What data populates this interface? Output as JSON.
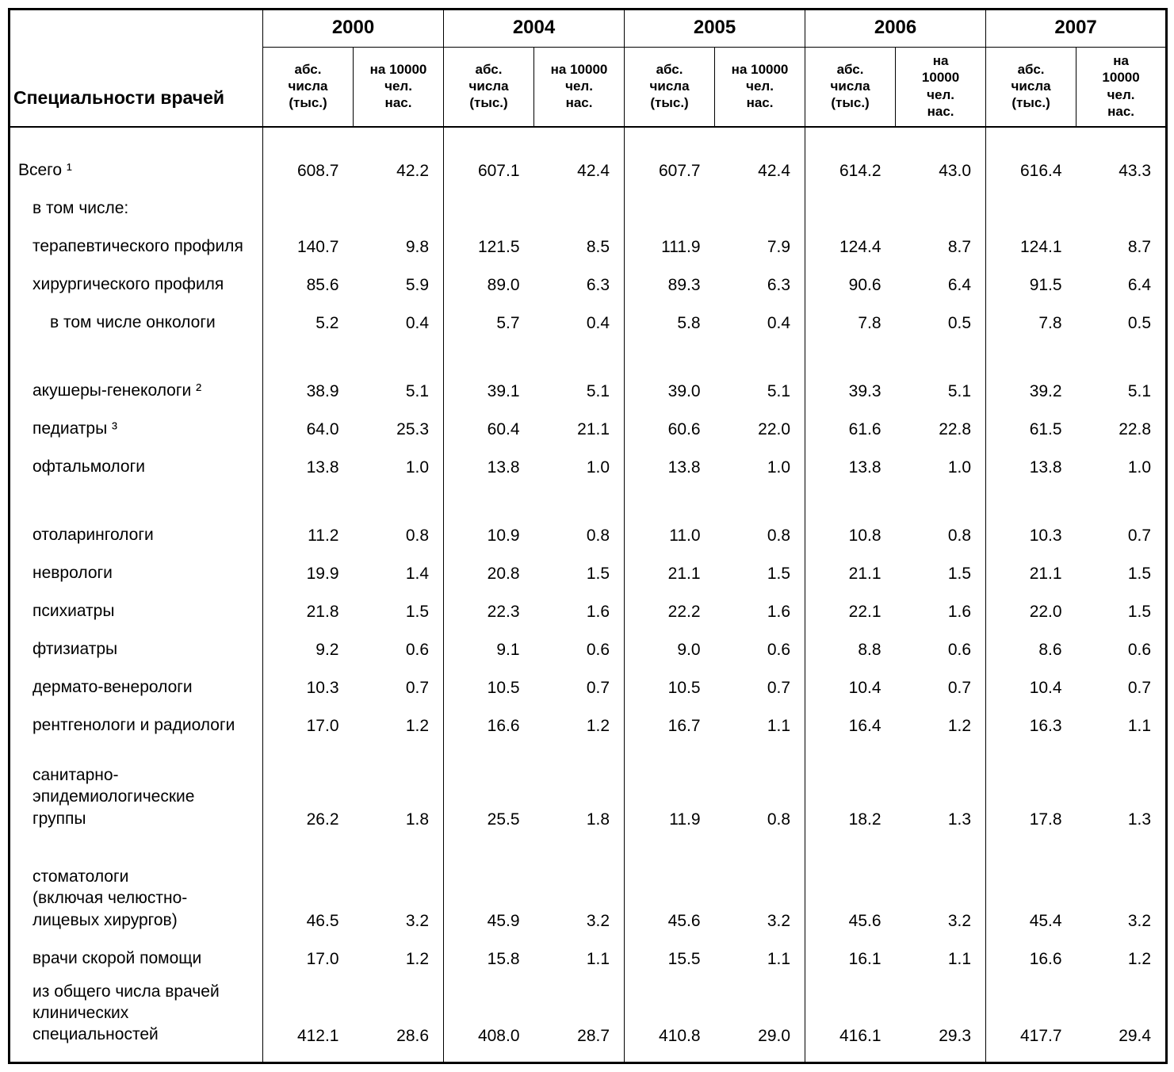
{
  "header": {
    "specialty_label": "Специальности врачей",
    "years": [
      "2000",
      "2004",
      "2005",
      "2006",
      "2007"
    ],
    "sub_abs": "абс.\nчисла\n(тыс.)",
    "sub_per": "на 10000\nчел.\nнас.",
    "sub_per_wrap": "на\n10000\nчел.\nнас."
  },
  "rows": [
    {
      "label": "Всего ¹",
      "indent": 0,
      "first": true,
      "vals": [
        "608.7",
        "42.2",
        "607.1",
        "42.4",
        "607.7",
        "42.4",
        "614.2",
        "43.0",
        "616.4",
        "43.3"
      ]
    },
    {
      "label": "в том числе:",
      "indent": 1,
      "vals": [
        "",
        "",
        "",
        "",
        "",
        "",
        "",
        "",
        "",
        ""
      ]
    },
    {
      "label": "терапевтического профиля",
      "indent": 1,
      "vals": [
        "140.7",
        "9.8",
        "121.5",
        "8.5",
        "111.9",
        "7.9",
        "124.4",
        "8.7",
        "124.1",
        "8.7"
      ]
    },
    {
      "label": "хирургического профиля",
      "indent": 1,
      "vals": [
        "85.6",
        "5.9",
        "89.0",
        "6.3",
        "89.3",
        "6.3",
        "90.6",
        "6.4",
        "91.5",
        "6.4"
      ]
    },
    {
      "label": "в том числе онкологи",
      "indent": 2,
      "vals": [
        "5.2",
        "0.4",
        "5.7",
        "0.4",
        "5.8",
        "0.4",
        "7.8",
        "0.5",
        "7.8",
        "0.5"
      ]
    },
    {
      "label": "акушеры-генекологи ²",
      "indent": 1,
      "tall": true,
      "vals": [
        "38.9",
        "5.1",
        "39.1",
        "5.1",
        "39.0",
        "5.1",
        "39.3",
        "5.1",
        "39.2",
        "5.1"
      ]
    },
    {
      "label": "педиатры  ³",
      "indent": 1,
      "vals": [
        "64.0",
        "25.3",
        "60.4",
        "21.1",
        "60.6",
        "22.0",
        "61.6",
        "22.8",
        "61.5",
        "22.8"
      ]
    },
    {
      "label": "офтальмологи",
      "indent": 1,
      "vals": [
        "13.8",
        "1.0",
        "13.8",
        "1.0",
        "13.8",
        "1.0",
        "13.8",
        "1.0",
        "13.8",
        "1.0"
      ]
    },
    {
      "label": "отоларингологи",
      "indent": 1,
      "tall": true,
      "vals": [
        "11.2",
        "0.8",
        "10.9",
        "0.8",
        "11.0",
        "0.8",
        "10.8",
        "0.8",
        "10.3",
        "0.7"
      ]
    },
    {
      "label": "неврологи",
      "indent": 1,
      "vals": [
        "19.9",
        "1.4",
        "20.8",
        "1.5",
        "21.1",
        "1.5",
        "21.1",
        "1.5",
        "21.1",
        "1.5"
      ]
    },
    {
      "label": "психиатры",
      "indent": 1,
      "vals": [
        "21.8",
        "1.5",
        "22.3",
        "1.6",
        "22.2",
        "1.6",
        "22.1",
        "1.6",
        "22.0",
        "1.5"
      ]
    },
    {
      "label": "фтизиатры",
      "indent": 1,
      "vals": [
        "9.2",
        "0.6",
        "9.1",
        "0.6",
        "9.0",
        "0.6",
        "8.8",
        "0.6",
        "8.6",
        "0.6"
      ]
    },
    {
      "label": "дермато-венерологи",
      "indent": 1,
      "vals": [
        "10.3",
        "0.7",
        "10.5",
        "0.7",
        "10.5",
        "0.7",
        "10.4",
        "0.7",
        "10.4",
        "0.7"
      ]
    },
    {
      "label": "рентгенологи и радиологи",
      "indent": 1,
      "vals": [
        "17.0",
        "1.2",
        "16.6",
        "1.2",
        "16.7",
        "1.1",
        "16.4",
        "1.2",
        "16.3",
        "1.1"
      ]
    },
    {
      "label": "санитарно-\nэпидемиологические\nгруппы",
      "indent": 1,
      "tall3": true,
      "vals": [
        "26.2",
        "1.8",
        "25.5",
        "1.8",
        "11.9",
        "0.8",
        "18.2",
        "1.3",
        "17.8",
        "1.3"
      ]
    },
    {
      "label": "стоматологи\n(включая челюстно-\nлицевых хирургов)",
      "indent": 1,
      "tall4": true,
      "vals": [
        "46.5",
        "3.2",
        "45.9",
        "3.2",
        "45.6",
        "3.2",
        "45.6",
        "3.2",
        "45.4",
        "3.2"
      ]
    },
    {
      "label": "врачи скорой помощи",
      "indent": 1,
      "vals": [
        "17.0",
        "1.2",
        "15.8",
        "1.1",
        "15.5",
        "1.1",
        "16.1",
        "1.1",
        "16.6",
        "1.2"
      ]
    },
    {
      "label": "из общего числа врачей\nклинических\nспециальностей",
      "indent": 1,
      "tall3": true,
      "last": true,
      "vals": [
        "412.1",
        "28.6",
        "408.0",
        "28.7",
        "410.8",
        "29.0",
        "416.1",
        "29.3",
        "417.7",
        "29.4"
      ]
    }
  ],
  "style": {
    "col_label_width": 320,
    "col_num_width": 114
  }
}
